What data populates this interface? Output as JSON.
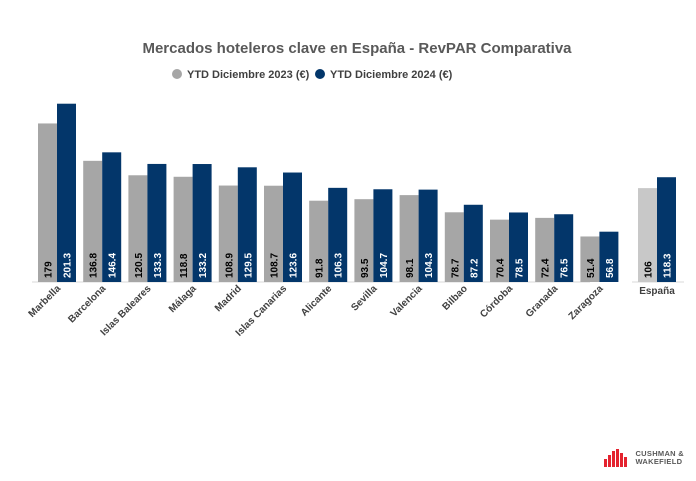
{
  "colors": {
    "series_2023": "#a6a6a6",
    "series_2023_espana": "#c8c8c8",
    "series_2024": "#03366a"
  },
  "logo": {
    "brand_line1": "CUSHMAN &",
    "brand_line2": "WAKEFIELD"
  },
  "chart_data": {
    "type": "bar",
    "title": "Mercados hoteleros clave en España - RevPAR Comparativa",
    "legend_position": "top",
    "ylim": [
      0,
      210
    ],
    "grid": false,
    "categories": [
      "Marbella",
      "Barcelona",
      "Islas Baleares",
      "Málaga",
      "Madrid",
      "Islas Canarias",
      "Alicante",
      "Sevilla",
      "Valencia",
      "Bilbao",
      "Córdoba",
      "Granada",
      "Zaragoza",
      "España"
    ],
    "series": [
      {
        "name": "YTD Diciembre 2023 (€)",
        "values": [
          179,
          136.8,
          120.5,
          118.8,
          108.9,
          108.7,
          91.8,
          93.5,
          98.1,
          78.7,
          70.4,
          72.4,
          51.4,
          106
        ],
        "labels": [
          "179",
          "136.8",
          "120.5",
          "118.8",
          "108.9",
          "108.7",
          "91.8",
          "93.5",
          "98.1",
          "78.7",
          "70.4",
          "72.4",
          "51.4",
          "106"
        ]
      },
      {
        "name": "YTD Diciembre 2024 (€)",
        "values": [
          201.3,
          146.4,
          133.3,
          133.2,
          129.5,
          123.6,
          106.3,
          104.7,
          104.3,
          87.2,
          78.5,
          76.5,
          56.8,
          118.3
        ],
        "labels": [
          "201.3",
          "146.4",
          "133.3",
          "133.2",
          "129.5",
          "123.6",
          "106.3",
          "104.7",
          "104.3",
          "87.2",
          "78.5",
          "76.5",
          "56.8",
          "118.3"
        ]
      }
    ]
  }
}
